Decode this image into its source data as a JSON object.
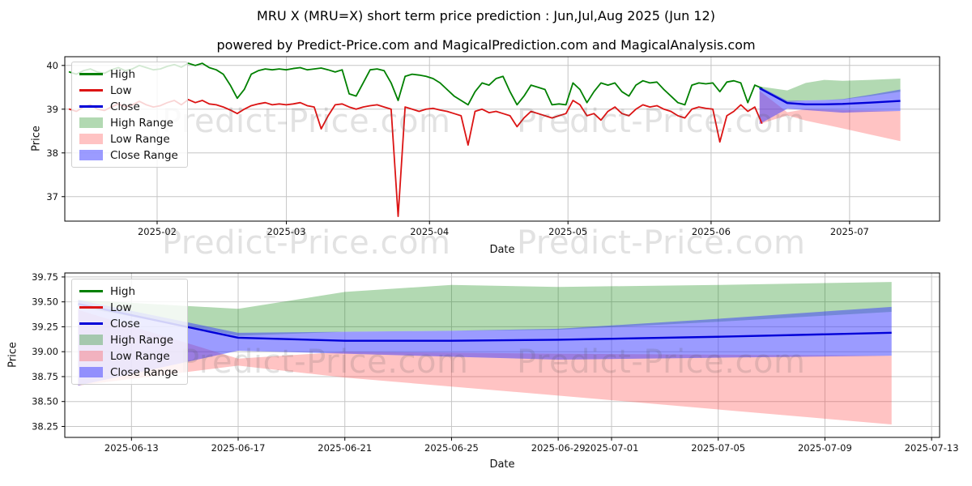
{
  "title": "MRU X (MRU=X) short term price prediction : Jun,Jul,Aug 2025 (Jun 12)",
  "subtitle": "powered by Predict-Price.com and MagicalPrediction.com and MagicalAnalysis.com",
  "watermark": {
    "text": "Predict-Price.com"
  },
  "colors": {
    "high_line": "#008000",
    "low_line": "#dc1414",
    "close_line": "#0000d8",
    "high_range_fill": "rgba(0,128,0,0.3)",
    "low_range_fill": "rgba(255,55,55,0.3)",
    "close_range_fill": "rgba(55,55,255,0.5)",
    "grid": "#c6c6c6",
    "spine": "#000000"
  },
  "legend": {
    "items": [
      {
        "label": "High",
        "swatch": "line",
        "color": "#008000"
      },
      {
        "label": "Low",
        "swatch": "line",
        "color": "#dc1414"
      },
      {
        "label": "Close",
        "swatch": "line",
        "color": "#0000d8"
      },
      {
        "label": "High Range",
        "swatch": "patch",
        "color": "rgba(0,128,0,0.3)"
      },
      {
        "label": "Low Range",
        "swatch": "patch",
        "color": "rgba(255,55,55,0.3)"
      },
      {
        "label": "Close Range",
        "swatch": "patch",
        "color": "rgba(55,55,255,0.5)"
      }
    ]
  },
  "prediction": {
    "note": "forecast bands Jun 12 - Jul 12 2025, t in days",
    "t_top": [
      150.5,
      156.5,
      160.5,
      164.5,
      168.5,
      174.5,
      181
    ],
    "t_bottom": [
      0.5,
      6.5,
      10.5,
      14.5,
      18.5,
      24.5,
      31
    ],
    "close": [
      39.48,
      39.14,
      39.11,
      39.11,
      39.12,
      39.15,
      39.19
    ],
    "high_range_top": [
      39.52,
      39.43,
      39.6,
      39.67,
      39.65,
      39.67,
      39.7
    ],
    "high_range_bottom": [
      39.45,
      39.16,
      39.2,
      39.21,
      39.22,
      39.3,
      39.4
    ],
    "low_range_top": [
      39.42,
      38.93,
      39.0,
      38.99,
      38.98,
      38.97,
      38.96
    ],
    "low_range_bottom": [
      38.66,
      38.86,
      38.74,
      38.65,
      38.56,
      38.42,
      38.27
    ],
    "close_range_top": [
      39.52,
      39.19,
      39.2,
      39.21,
      39.23,
      39.33,
      39.45
    ],
    "close_range_bottom": [
      38.66,
      39.01,
      38.98,
      38.95,
      38.92,
      38.94,
      38.96
    ]
  },
  "chart_data": [
    {
      "type": "line",
      "name": "history-with-forecast-chart",
      "xlabel": "Date",
      "ylabel": "Price",
      "x_unit": "days since 2025-01-12",
      "xlim": [
        0,
        189.5
      ],
      "ylim": [
        36.44,
        40.2
      ],
      "xticks": [
        {
          "t": 20,
          "label": "2025-02"
        },
        {
          "t": 48,
          "label": "2025-03"
        },
        {
          "t": 79,
          "label": "2025-04"
        },
        {
          "t": 109,
          "label": "2025-05"
        },
        {
          "t": 140,
          "label": "2025-06"
        },
        {
          "t": 170,
          "label": "2025-07"
        }
      ],
      "yticks": [
        {
          "v": 37,
          "label": "37"
        },
        {
          "v": 38,
          "label": "38"
        },
        {
          "v": 39,
          "label": "39"
        },
        {
          "v": 40,
          "label": "40"
        }
      ],
      "history": {
        "t_start": 1,
        "t_step": 1.515,
        "high": [
          39.85,
          39.8,
          39.88,
          39.92,
          39.85,
          39.82,
          39.9,
          39.95,
          39.88,
          39.92,
          40.0,
          39.95,
          39.9,
          39.92,
          39.98,
          40.02,
          39.96,
          40.05,
          40.0,
          40.05,
          39.95,
          39.9,
          39.8,
          39.55,
          39.25,
          39.45,
          39.8,
          39.88,
          39.92,
          39.9,
          39.92,
          39.9,
          39.93,
          39.95,
          39.9,
          39.92,
          39.94,
          39.9,
          39.85,
          39.9,
          39.35,
          39.3,
          39.6,
          39.9,
          39.92,
          39.88,
          39.6,
          39.2,
          39.75,
          39.8,
          39.78,
          39.75,
          39.7,
          39.6,
          39.45,
          39.3,
          39.2,
          39.1,
          39.4,
          39.6,
          39.55,
          39.7,
          39.75,
          39.4,
          39.1,
          39.3,
          39.55,
          39.5,
          39.45,
          39.1,
          39.12,
          39.1,
          39.6,
          39.45,
          39.15,
          39.4,
          39.6,
          39.55,
          39.6,
          39.4,
          39.3,
          39.55,
          39.65,
          39.6,
          39.62,
          39.45,
          39.3,
          39.15,
          39.1,
          39.55,
          39.6,
          39.58,
          39.6,
          39.4,
          39.62,
          39.65,
          39.6,
          39.15,
          39.55,
          39.48
        ],
        "low": [
          39.0,
          38.95,
          39.05,
          39.1,
          39.0,
          38.97,
          39.05,
          39.12,
          39.05,
          39.1,
          39.18,
          39.1,
          39.05,
          39.08,
          39.15,
          39.2,
          39.1,
          39.22,
          39.15,
          39.2,
          39.12,
          39.1,
          39.05,
          38.98,
          38.9,
          39.0,
          39.08,
          39.12,
          39.15,
          39.1,
          39.12,
          39.1,
          39.12,
          39.15,
          39.08,
          39.05,
          38.55,
          38.85,
          39.1,
          39.12,
          39.05,
          39.0,
          39.05,
          39.08,
          39.1,
          39.05,
          39.0,
          36.55,
          39.05,
          39.0,
          38.95,
          39.0,
          39.02,
          38.98,
          38.95,
          38.9,
          38.85,
          38.18,
          38.95,
          39.0,
          38.92,
          38.95,
          38.9,
          38.85,
          38.6,
          38.8,
          38.95,
          38.9,
          38.85,
          38.8,
          38.85,
          38.9,
          39.2,
          39.1,
          38.85,
          38.9,
          38.75,
          38.95,
          39.05,
          38.9,
          38.85,
          39.0,
          39.1,
          39.05,
          39.08,
          39.0,
          38.95,
          38.85,
          38.8,
          39.0,
          39.05,
          39.02,
          39.0,
          38.25,
          38.85,
          38.95,
          39.1,
          38.95,
          39.05,
          38.68
        ]
      },
      "pred_t": "t_top"
    },
    {
      "type": "line",
      "name": "forecast-detail-chart",
      "xlabel": "Date",
      "ylabel": "Price",
      "x_unit": "days since 2025-06-10",
      "xlim": [
        0,
        32.8
      ],
      "ylim": [
        38.14,
        39.79
      ],
      "xticks": [
        {
          "t": 2.5,
          "label": "2025-06-13"
        },
        {
          "t": 6.5,
          "label": "2025-06-17"
        },
        {
          "t": 10.5,
          "label": "2025-06-21"
        },
        {
          "t": 14.5,
          "label": "2025-06-25"
        },
        {
          "t": 18.5,
          "label": "2025-06-29"
        },
        {
          "t": 20.5,
          "label": "2025-07-01"
        },
        {
          "t": 24.5,
          "label": "2025-07-05"
        },
        {
          "t": 28.5,
          "label": "2025-07-09"
        },
        {
          "t": 32.5,
          "label": "2025-07-13"
        }
      ],
      "yticks": [
        {
          "v": 38.25,
          "label": "38.25"
        },
        {
          "v": 38.5,
          "label": "38.50"
        },
        {
          "v": 38.75,
          "label": "38.75"
        },
        {
          "v": 39.0,
          "label": "39.00"
        },
        {
          "v": 39.25,
          "label": "39.25"
        },
        {
          "v": 39.5,
          "label": "39.50"
        },
        {
          "v": 39.75,
          "label": "39.75"
        }
      ],
      "history": null,
      "pred_t": "t_bottom"
    }
  ]
}
